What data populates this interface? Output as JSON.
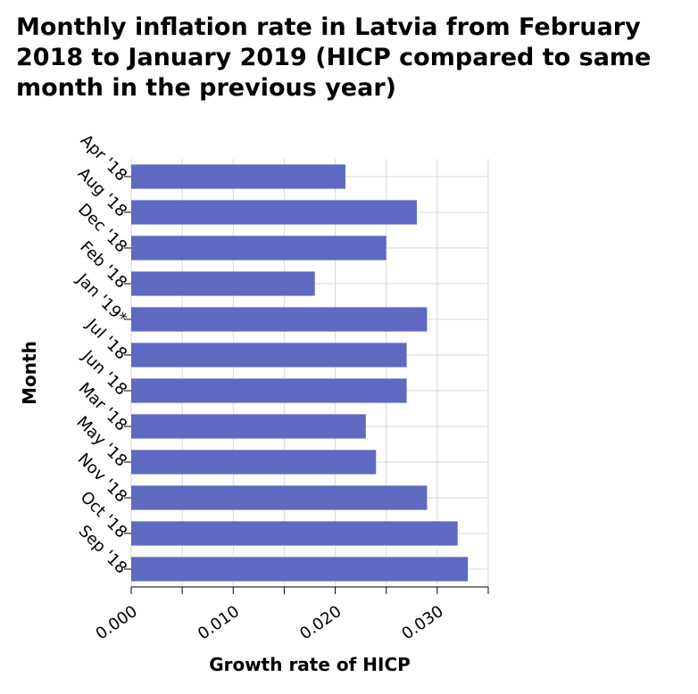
{
  "chart_data": {
    "type": "bar",
    "orientation": "horizontal",
    "title": "Monthly inflation rate in Latvia from February 2018 to January 2019 (HICP compared to same month in the previous year)",
    "xlabel": "Growth rate of HICP",
    "ylabel": "Month",
    "categories": [
      "Apr '18",
      "Aug '18",
      "Dec '18",
      "Feb '18",
      "Jan '19*",
      "Jul '18",
      "Jun '18",
      "Mar '18",
      "May '18",
      "Nov '18",
      "Oct '18",
      "Sep '18"
    ],
    "values": [
      0.021,
      0.028,
      0.025,
      0.018,
      0.029,
      0.027,
      0.027,
      0.023,
      0.024,
      0.029,
      0.032,
      0.033
    ],
    "xlim": [
      0,
      0.035
    ],
    "xticks": [
      "0.000",
      "0.010",
      "0.020",
      "0.030"
    ],
    "xtick_values": [
      0,
      0.01,
      0.02,
      0.03
    ],
    "grid": true,
    "bar_color": "#5f69c1"
  }
}
